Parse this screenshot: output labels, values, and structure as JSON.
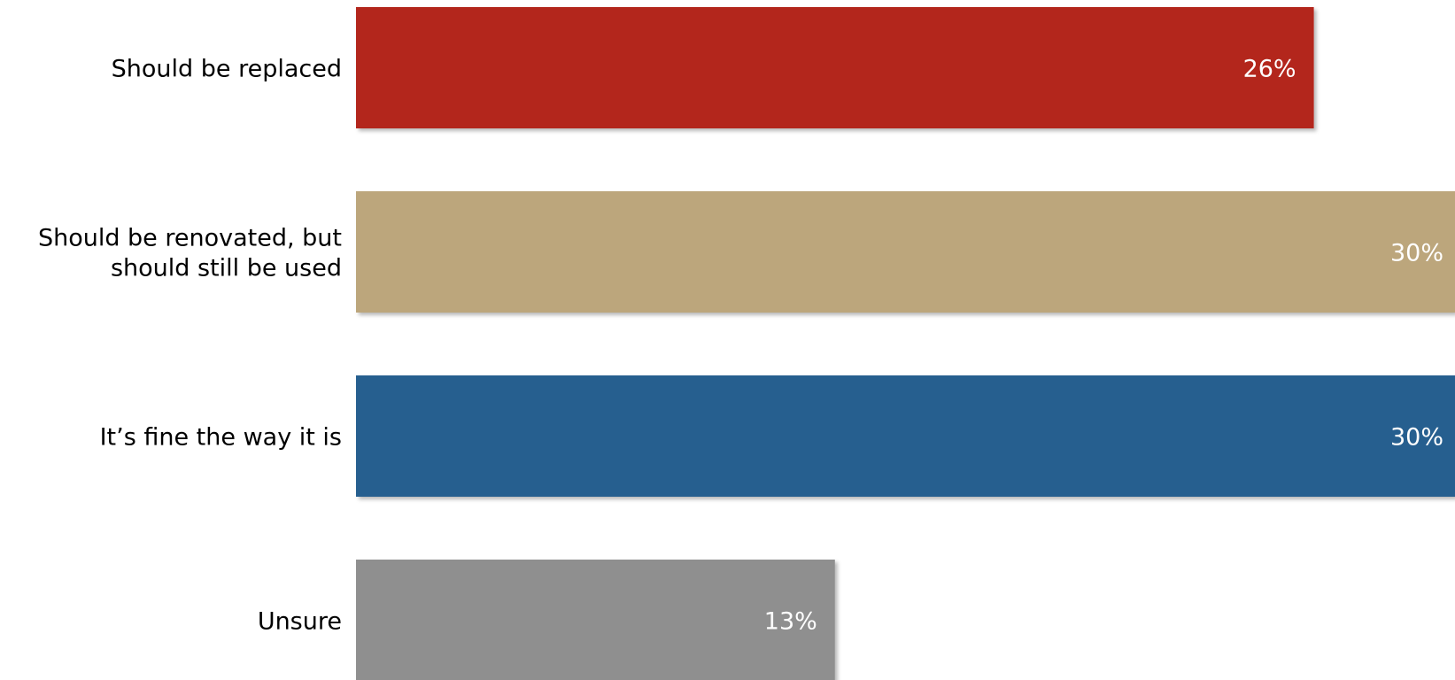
{
  "chart_data": {
    "type": "bar",
    "orientation": "horizontal",
    "categories": [
      [
        "Should be replaced"
      ],
      [
        "Should be renovated, but",
        "should still be used"
      ],
      [
        "It’s fine the way it is"
      ],
      [
        "Unsure"
      ]
    ],
    "values": [
      26,
      30,
      30,
      13
    ],
    "value_labels": [
      "26%",
      "30%",
      "30%",
      "13%"
    ],
    "colors": [
      "#b3261f",
      "#bca67b",
      "#285e8f",
      "#8f8f8f"
    ],
    "unit": "%",
    "title": "",
    "xlabel": "",
    "ylabel": "",
    "legend": "none",
    "grid": false
  }
}
